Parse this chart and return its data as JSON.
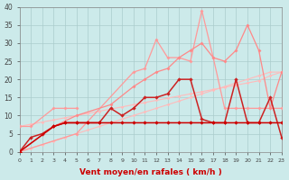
{
  "xlabel": "Vent moyen/en rafales ( km/h )",
  "background_color": "#cceaea",
  "grid_color": "#aacccc",
  "series": [
    {
      "x": [
        0,
        1,
        2,
        3,
        4,
        5,
        6,
        7,
        8,
        9,
        10,
        11,
        12,
        13,
        14,
        15,
        16,
        17,
        18,
        19,
        20,
        21,
        22,
        23
      ],
      "y": [
        0,
        1,
        2,
        3,
        4,
        5,
        6,
        7,
        8,
        9,
        10,
        11,
        12,
        13,
        14,
        15,
        16,
        17,
        18,
        19,
        20,
        21,
        22,
        22
      ],
      "color": "#ffbbbb",
      "lw": 0.8,
      "ms": 1.8
    },
    {
      "x": [
        0,
        1,
        2,
        3,
        4,
        5,
        6,
        7,
        8,
        9,
        10,
        11,
        12,
        13,
        14,
        15,
        16,
        17,
        18,
        19,
        20,
        21,
        22,
        23
      ],
      "y": [
        7,
        7.6,
        8.2,
        8.8,
        9.4,
        10,
        10.6,
        11.2,
        11.8,
        12.4,
        13,
        13.6,
        14.2,
        14.8,
        15.4,
        16,
        16.6,
        17.2,
        17.8,
        18.4,
        19,
        19.6,
        21,
        22
      ],
      "color": "#ffbbbb",
      "lw": 0.8,
      "ms": 1.8
    },
    {
      "x": [
        0,
        5,
        10,
        11,
        12,
        13,
        14,
        15,
        16,
        17,
        18,
        19,
        20,
        21,
        22,
        23
      ],
      "y": [
        0,
        5,
        22,
        23,
        31,
        26,
        26,
        25,
        39,
        26,
        12,
        12,
        12,
        12,
        12,
        12
      ],
      "color": "#ff9999",
      "lw": 0.9,
      "ms": 2.0
    },
    {
      "x": [
        0,
        3,
        5,
        8,
        10,
        11,
        12,
        13,
        14,
        15,
        16,
        17,
        18,
        19,
        20,
        21,
        22,
        23
      ],
      "y": [
        0,
        7,
        10,
        13,
        18,
        20,
        22,
        23,
        26,
        28,
        30,
        26,
        25,
        28,
        35,
        28,
        12,
        22
      ],
      "color": "#ff8888",
      "lw": 0.9,
      "ms": 2.0
    },
    {
      "x": [
        0,
        1,
        2,
        3,
        4,
        5,
        6,
        7,
        8,
        9,
        10,
        11,
        12,
        13,
        14,
        15,
        16,
        17,
        18,
        19,
        20,
        21,
        22,
        23
      ],
      "y": [
        0,
        4,
        5,
        7,
        8,
        8,
        8,
        8,
        12,
        10,
        12,
        15,
        15,
        16,
        20,
        20,
        9,
        8,
        8,
        20,
        8,
        8,
        15,
        4
      ],
      "color": "#cc2222",
      "lw": 1.1,
      "ms": 2.2
    },
    {
      "x": [
        0,
        3,
        4,
        5,
        6,
        7,
        8,
        9,
        10,
        11,
        12,
        13,
        14,
        15,
        16,
        17,
        18,
        19,
        20,
        21,
        22,
        23
      ],
      "y": [
        0,
        7,
        8,
        8,
        8,
        8,
        8,
        8,
        8,
        8,
        8,
        8,
        8,
        8,
        8,
        8,
        8,
        8,
        8,
        8,
        8,
        8
      ],
      "color": "#cc0000",
      "lw": 1.1,
      "ms": 2.2
    },
    {
      "x": [
        0,
        1,
        3,
        4,
        5
      ],
      "y": [
        7,
        7,
        12,
        12,
        12
      ],
      "color": "#ff9999",
      "lw": 0.9,
      "ms": 2.0
    }
  ],
  "ylim": [
    0,
    40
  ],
  "xlim": [
    0,
    23
  ],
  "yticks": [
    0,
    5,
    10,
    15,
    20,
    25,
    30,
    35,
    40
  ],
  "xticks": [
    0,
    1,
    2,
    3,
    4,
    5,
    6,
    7,
    8,
    9,
    10,
    11,
    12,
    13,
    14,
    15,
    16,
    17,
    18,
    19,
    20,
    21,
    22,
    23
  ]
}
